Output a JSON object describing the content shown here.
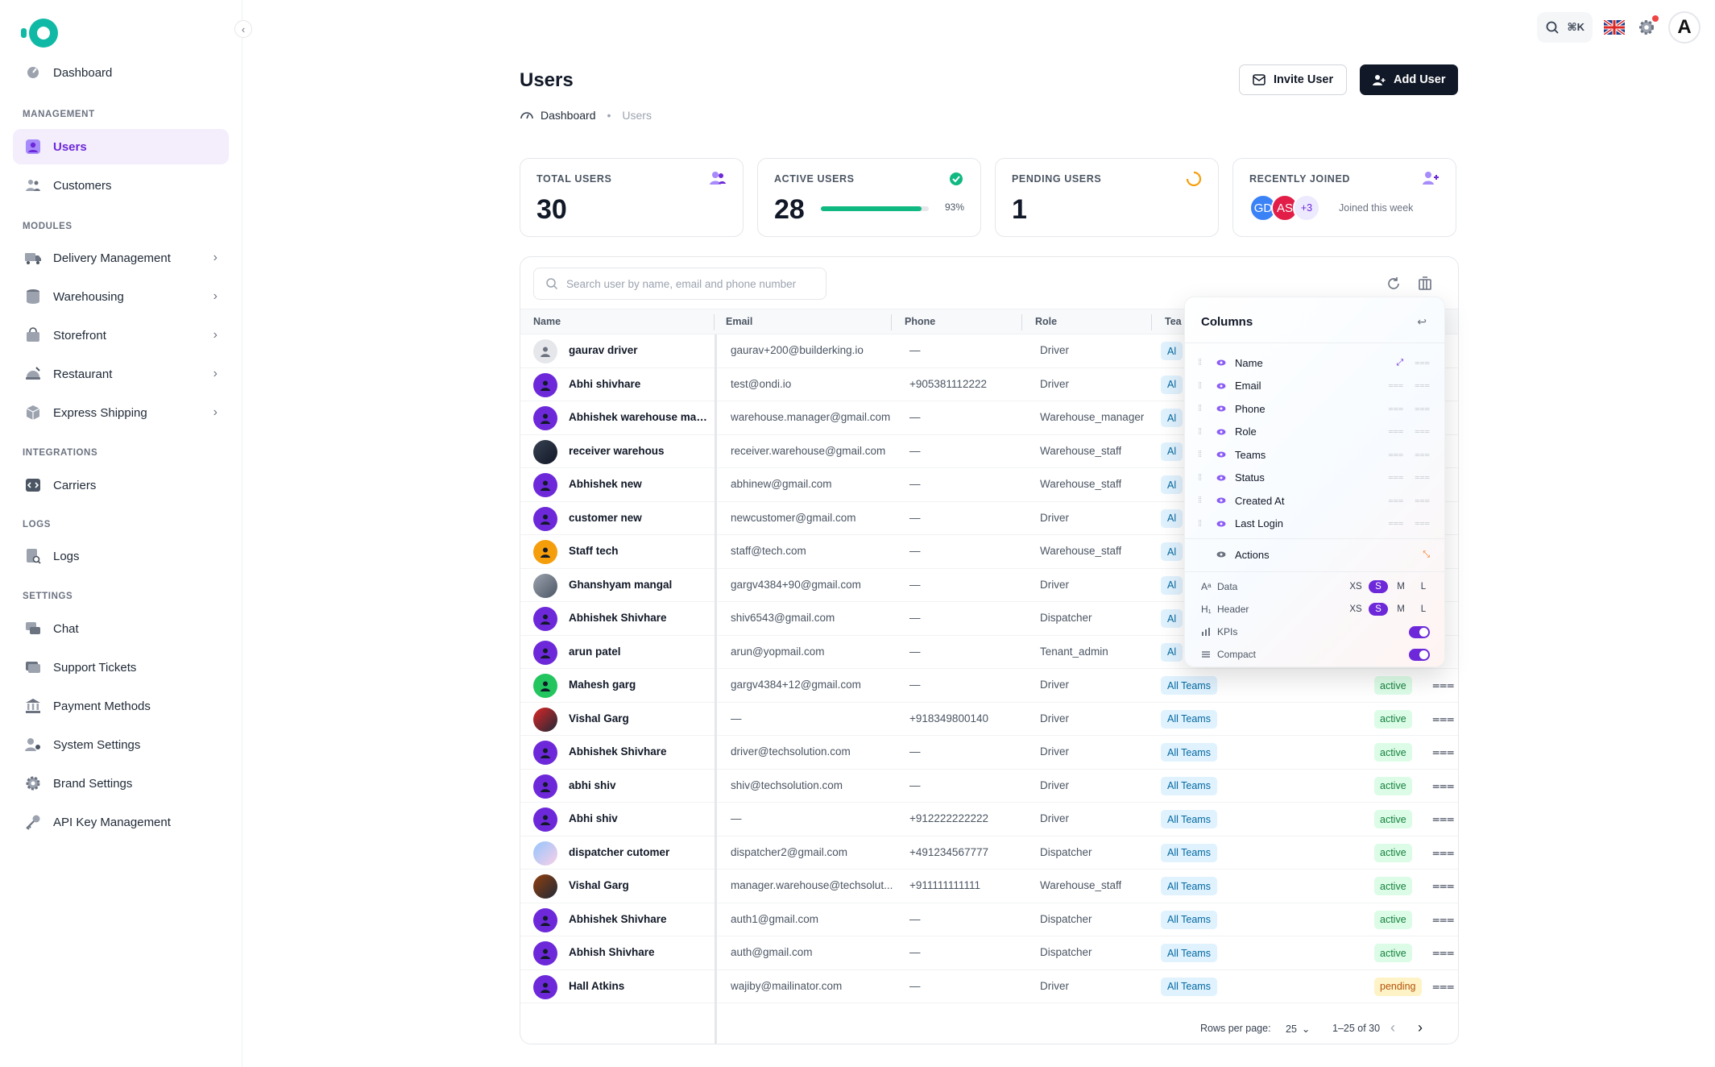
{
  "sidebar": {
    "collapse_glyph": "‹",
    "dashboard": "Dashboard",
    "sections": {
      "management": "MANAGEMENT",
      "modules": "MODULES",
      "integrations": "INTEGRATIONS",
      "logs": "LOGS",
      "settings": "SETTINGS"
    },
    "items": {
      "users": "Users",
      "customers": "Customers",
      "delivery": "Delivery Management",
      "warehousing": "Warehousing",
      "storefront": "Storefront",
      "restaurant": "Restaurant",
      "express": "Express Shipping",
      "carriers": "Carriers",
      "logs": "Logs",
      "chat": "Chat",
      "support": "Support Tickets",
      "payment": "Payment Methods",
      "system": "System Settings",
      "brand": "Brand Settings",
      "api": "API Key Management"
    },
    "chevron": "›"
  },
  "topbar": {
    "shortcut": "⌘K",
    "avatar_letter": "A"
  },
  "page": {
    "title": "Users",
    "breadcrumb_home": "Dashboard",
    "breadcrumb_sep": "•",
    "breadcrumb_current": "Users",
    "invite_label": "Invite User",
    "add_label": "Add User"
  },
  "kpis": {
    "total": {
      "label": "TOTAL USERS",
      "value": "30"
    },
    "active": {
      "label": "ACTIVE USERS",
      "value": "28",
      "percent_text": "93%",
      "fraction": 0.93
    },
    "pending": {
      "label": "PENDING USERS",
      "value": "1"
    },
    "recent": {
      "label": "RECENTLY JOINED",
      "avatars": [
        "GD",
        "AS",
        "+3"
      ],
      "note": "Joined this week"
    }
  },
  "table": {
    "search_placeholder": "Search user by name, email and phone number",
    "columns": {
      "name": "Name",
      "email": "Email",
      "phone": "Phone",
      "role": "Role",
      "teams": "Tea"
    },
    "rows": [
      {
        "name": "gaurav driver",
        "email": "gaurav+200@builderking.io",
        "phone": "—",
        "role": "Driver",
        "team": "Al",
        "status": "",
        "avatar": "gray"
      },
      {
        "name": "Abhi shivhare",
        "email": "test@ondi.io",
        "phone": "+905381112222",
        "role": "Driver",
        "team": "Al",
        "status": "",
        "avatar": "purple"
      },
      {
        "name": "Abhishek warehouse man...",
        "email": "warehouse.manager@gmail.com",
        "phone": "—",
        "role": "Warehouse_manager",
        "team": "Al",
        "status": "",
        "avatar": "purple"
      },
      {
        "name": "receiver warehous",
        "email": "receiver.warehouse@gmail.com",
        "phone": "—",
        "role": "Warehouse_staff",
        "team": "Al",
        "status": "",
        "avatar": "photo-dark"
      },
      {
        "name": "Abhishek new",
        "email": "abhinew@gmail.com",
        "phone": "—",
        "role": "Warehouse_staff",
        "team": "Al",
        "status": "",
        "avatar": "purple"
      },
      {
        "name": "customer new",
        "email": "newcustomer@gmail.com",
        "phone": "—",
        "role": "Driver",
        "team": "Al",
        "status": "",
        "avatar": "purple"
      },
      {
        "name": "Staff tech",
        "email": "staff@tech.com",
        "phone": "—",
        "role": "Warehouse_staff",
        "team": "Al",
        "status": "",
        "avatar": "orange"
      },
      {
        "name": "Ghanshyam mangal",
        "email": "gargv4384+90@gmail.com",
        "phone": "—",
        "role": "Driver",
        "team": "Al",
        "status": "",
        "avatar": "photo-gray"
      },
      {
        "name": "Abhishek Shivhare",
        "email": "shiv6543@gmail.com",
        "phone": "—",
        "role": "Dispatcher",
        "team": "Al",
        "status": "",
        "avatar": "purple"
      },
      {
        "name": "arun patel",
        "email": "arun@yopmail.com",
        "phone": "—",
        "role": "Tenant_admin",
        "team": "Al",
        "status": "",
        "avatar": "purple"
      },
      {
        "name": "Mahesh garg",
        "email": "gargv4384+12@gmail.com",
        "phone": "—",
        "role": "Driver",
        "team": "All Teams",
        "status": "active",
        "avatar": "green"
      },
      {
        "name": "Vishal Garg",
        "email": "—",
        "phone": "+918349800140",
        "role": "Driver",
        "team": "All Teams",
        "status": "active",
        "avatar": "photo-red"
      },
      {
        "name": "Abhishek Shivhare",
        "email": "driver@techsolution.com",
        "phone": "—",
        "role": "Driver",
        "team": "All Teams",
        "status": "active",
        "avatar": "purple"
      },
      {
        "name": "abhi shiv",
        "email": "shiv@techsolution.com",
        "phone": "—",
        "role": "Driver",
        "team": "All Teams",
        "status": "active",
        "avatar": "purple"
      },
      {
        "name": "Abhi shiv",
        "email": "—",
        "phone": "+912222222222",
        "role": "Driver",
        "team": "All Teams",
        "status": "active",
        "avatar": "purple"
      },
      {
        "name": "dispatcher cutomer",
        "email": "dispatcher2@gmail.com",
        "phone": "+491234567777",
        "role": "Dispatcher",
        "team": "All Teams",
        "status": "active",
        "avatar": "photo-light"
      },
      {
        "name": "Vishal Garg",
        "email": "manager.warehouse@techsolut...",
        "phone": "+911111111111",
        "role": "Warehouse_staff",
        "team": "All Teams",
        "status": "active",
        "avatar": "photo-brown"
      },
      {
        "name": "Abhishek Shivhare",
        "email": "auth1@gmail.com",
        "phone": "—",
        "role": "Dispatcher",
        "team": "All Teams",
        "status": "active",
        "avatar": "purple"
      },
      {
        "name": "Abhish Shivhare",
        "email": "auth@gmail.com",
        "phone": "—",
        "role": "Dispatcher",
        "team": "All Teams",
        "status": "active",
        "avatar": "purple"
      },
      {
        "name": "Hall Atkins",
        "email": "wajiby@mailinator.com",
        "phone": "—",
        "role": "Driver",
        "team": "All Teams",
        "status": "pending",
        "avatar": "purple"
      }
    ],
    "footer": {
      "rows_label": "Rows per page:",
      "rows_value": "25",
      "range": "1–25 of 30"
    }
  },
  "columns_panel": {
    "title": "Columns",
    "items": [
      "Name",
      "Email",
      "Phone",
      "Role",
      "Teams",
      "Status",
      "Created At",
      "Last Login"
    ],
    "actions": "Actions",
    "options": {
      "data": "Data",
      "header": "Header",
      "kpis": "KPIs",
      "compact": "Compact",
      "sizes": [
        "XS",
        "S",
        "M",
        "L"
      ],
      "selected_size": "S"
    }
  },
  "colors": {
    "accent": "#6d28d9",
    "success": "#10b981",
    "dark": "#111827"
  }
}
